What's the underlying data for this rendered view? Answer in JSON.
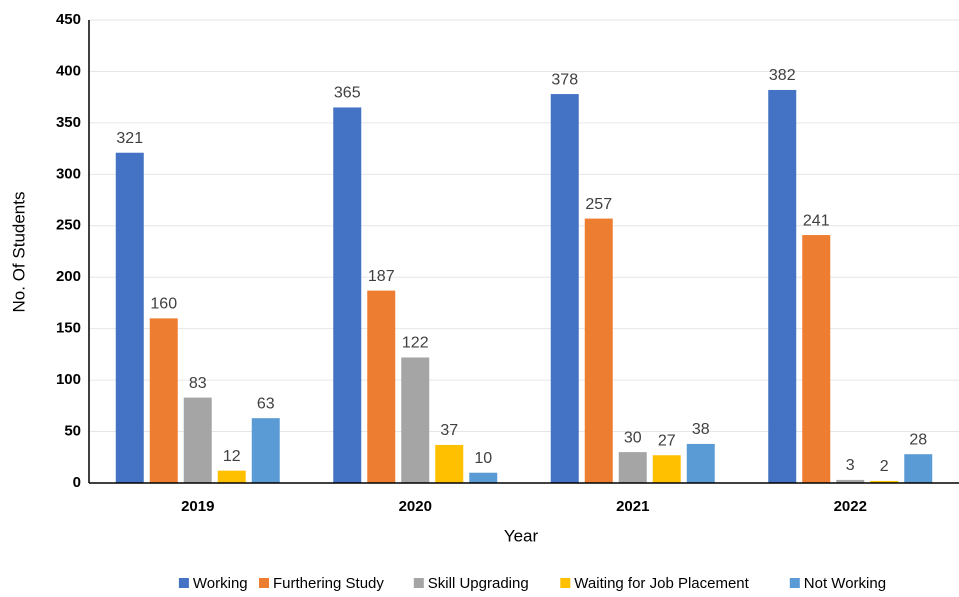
{
  "chart_data": {
    "type": "bar",
    "xlabel": "Year",
    "ylabel": "No. Of Students",
    "categories": [
      "2019",
      "2020",
      "2021",
      "2022"
    ],
    "series": [
      {
        "name": "Working",
        "color": "#4472c4",
        "values": [
          321,
          365,
          378,
          382
        ]
      },
      {
        "name": "Furthering Study",
        "color": "#ed7d31",
        "values": [
          160,
          187,
          257,
          241
        ]
      },
      {
        "name": "Skill Upgrading",
        "color": "#a5a5a5",
        "values": [
          83,
          122,
          30,
          3
        ]
      },
      {
        "name": "Waiting for Job Placement",
        "color": "#ffc000",
        "values": [
          12,
          37,
          27,
          2
        ]
      },
      {
        "name": "Not Working",
        "color": "#5b9bd5",
        "values": [
          63,
          10,
          38,
          28
        ]
      }
    ],
    "ylim": [
      0,
      450
    ],
    "yticks": [
      0,
      50,
      100,
      150,
      200,
      250,
      300,
      350,
      400,
      450
    ],
    "grid": true,
    "legend": "bottom"
  }
}
